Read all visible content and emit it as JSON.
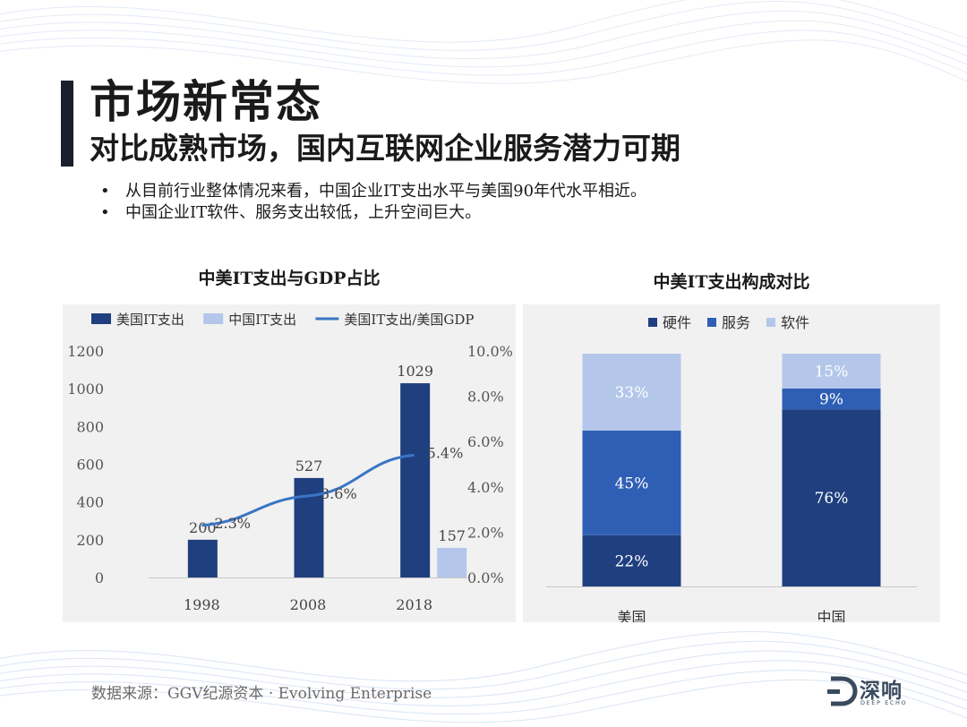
{
  "slide": {
    "title": "市场新常态",
    "subtitle": "对比成熟市场，国内互联网企业服务潜力可期",
    "bullets": [
      "从目前行业整体情况来看，中国企业IT支出水平与美国90年代水平相近。",
      "中国企业IT软件、服务支出较低，上升空间巨大。"
    ],
    "source": "数据来源：GGV纪源资本 · Evolving Enterprise",
    "logo": {
      "text": "深响",
      "subtext": "DEEP ECHO"
    }
  },
  "chart_data": [
    {
      "type": "bar",
      "title": "中美IT支出与GDP占比",
      "categories": [
        "1998",
        "2008",
        "2018"
      ],
      "series": [
        {
          "name": "美国IT支出",
          "type": "bar",
          "axis": "left",
          "color": "#1f3f7f",
          "values": [
            200,
            527,
            1029
          ],
          "labels": [
            "200",
            "527",
            "1029"
          ]
        },
        {
          "name": "中国IT支出",
          "type": "bar",
          "axis": "left",
          "color": "#b4c7ea",
          "values": [
            null,
            null,
            157
          ],
          "labels": [
            "",
            "",
            "157"
          ]
        },
        {
          "name": "美国IT支出/美国GDP",
          "type": "line",
          "axis": "right",
          "color": "#3a75c4",
          "values": [
            2.3,
            3.6,
            5.4
          ],
          "labels": [
            "2.3%",
            "3.6%",
            "5.4%"
          ]
        }
      ],
      "y_left": {
        "min": 0,
        "max": 1200,
        "ticks": [
          "0",
          "200",
          "400",
          "600",
          "800",
          "1000",
          "1200"
        ]
      },
      "y_right": {
        "min": 0,
        "max": 10,
        "ticks": [
          "0.0%",
          "2.0%",
          "4.0%",
          "6.0%",
          "8.0%",
          "10.0%"
        ]
      },
      "legend": "top",
      "grid": false
    },
    {
      "type": "stacked-bar",
      "title": "中美IT支出构成对比",
      "categories": [
        "美国",
        "中国"
      ],
      "series": [
        {
          "name": "硬件",
          "color": "#1f3f7f",
          "values": [
            22,
            76
          ],
          "labels": [
            "22%",
            "76%"
          ]
        },
        {
          "name": "服务",
          "color": "#2f5fb5",
          "values": [
            45,
            9
          ],
          "labels": [
            "45%",
            "9%"
          ]
        },
        {
          "name": "软件",
          "color": "#b4c7ea",
          "values": [
            33,
            15
          ],
          "labels": [
            "33%",
            "15%"
          ]
        }
      ],
      "legend": "top",
      "grid": false
    }
  ]
}
